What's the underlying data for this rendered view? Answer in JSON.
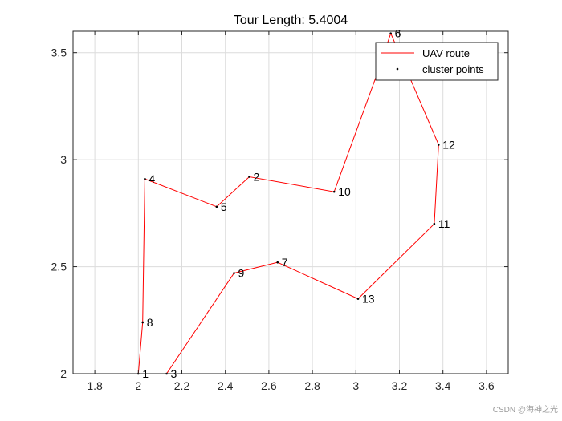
{
  "chart_data": {
    "type": "line",
    "title": "Tour Length: 5.4004",
    "xlabel": "",
    "ylabel": "",
    "xlim": [
      1.7,
      3.7
    ],
    "ylim": [
      2.0,
      3.6
    ],
    "xticks": [
      1.8,
      2.0,
      2.2,
      2.4,
      2.6,
      2.8,
      3.0,
      3.2,
      3.4,
      3.6
    ],
    "xtick_labels": [
      "1.8",
      "2",
      "2.2",
      "2.4",
      "2.6",
      "2.8",
      "3",
      "3.2",
      "3.4",
      "3.6"
    ],
    "yticks": [
      2.0,
      2.5,
      3.0,
      3.5
    ],
    "ytick_labels": [
      "2",
      "2.5",
      "3",
      "3.5"
    ],
    "grid": true,
    "legend": {
      "placement": "top-right",
      "entries": [
        {
          "label": "UAV route",
          "type": "line",
          "color": "#ff0000"
        },
        {
          "label": "cluster points",
          "type": "marker",
          "color": "#000000"
        }
      ]
    },
    "points": [
      {
        "label": "1",
        "x": 2.0,
        "y": 2.0
      },
      {
        "label": "2",
        "x": 2.51,
        "y": 2.92
      },
      {
        "label": "3",
        "x": 2.13,
        "y": 2.0
      },
      {
        "label": "4",
        "x": 2.03,
        "y": 2.91
      },
      {
        "label": "5",
        "x": 2.36,
        "y": 2.78
      },
      {
        "label": "6",
        "x": 3.16,
        "y": 3.59
      },
      {
        "label": "7",
        "x": 2.64,
        "y": 2.52
      },
      {
        "label": "8",
        "x": 2.02,
        "y": 2.24
      },
      {
        "label": "9",
        "x": 2.44,
        "y": 2.47
      },
      {
        "label": "10",
        "x": 2.9,
        "y": 2.85
      },
      {
        "label": "11",
        "x": 3.36,
        "y": 2.7
      },
      {
        "label": "12",
        "x": 3.38,
        "y": 3.07
      },
      {
        "label": "13",
        "x": 3.01,
        "y": 2.35
      }
    ],
    "route": [
      {
        "x": 2.0,
        "y": 2.0
      },
      {
        "x": 2.02,
        "y": 2.24
      },
      {
        "x": 2.03,
        "y": 2.91
      },
      {
        "x": 2.36,
        "y": 2.78
      },
      {
        "x": 2.51,
        "y": 2.92
      },
      {
        "x": 2.9,
        "y": 2.85
      },
      {
        "x": 3.09,
        "y": 3.38
      },
      {
        "x": 3.16,
        "y": 3.59
      },
      {
        "x": 3.38,
        "y": 3.07
      },
      {
        "x": 3.36,
        "y": 2.7
      },
      {
        "x": 3.01,
        "y": 2.35
      },
      {
        "x": 2.64,
        "y": 2.52
      },
      {
        "x": 2.44,
        "y": 2.47
      },
      {
        "x": 2.13,
        "y": 2.0
      },
      {
        "x": 2.0,
        "y": 2.0
      }
    ],
    "colors": {
      "route": "#ff0000",
      "points": "#000000",
      "grid": "#dcdcdc",
      "axes": "#262626"
    }
  },
  "watermark": "CSDN @海神之光"
}
